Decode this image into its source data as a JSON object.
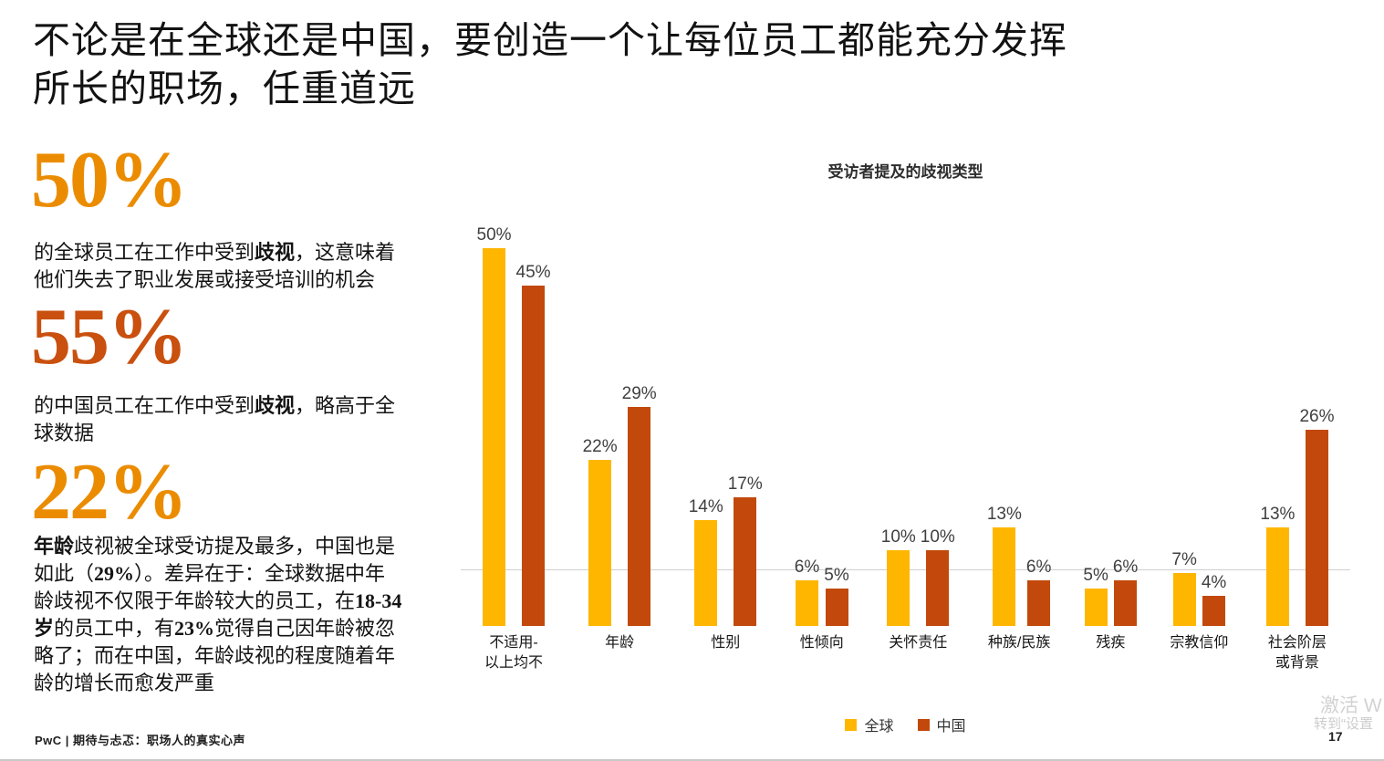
{
  "slide": {
    "title_segments": [
      {
        "t": "不论是在全球还是中国，要创造一个让每位员工都能充分发挥"
      },
      {
        "br": 1
      },
      {
        "t": "所长的职场，任重道远"
      }
    ],
    "footer": "PwC | 期待与忐忑：职场人的真实心声",
    "page_number": "17",
    "watermark_line1": "激活 W",
    "watermark_line2": "转到“设置"
  },
  "stats": [
    {
      "value": "50%",
      "color": "#EB8C00",
      "segments": [
        {
          "t": "的全球员工在工作中受到"
        },
        {
          "t": "歧视",
          "b": 1
        },
        {
          "t": "，这意味着"
        },
        {
          "br": 1
        },
        {
          "t": "他们失去了职业发展或接受培训的机会"
        }
      ]
    },
    {
      "value": "55%",
      "color": "#C9500F",
      "segments": [
        {
          "t": "的中国员工在工作中受到"
        },
        {
          "t": "歧视",
          "b": 1
        },
        {
          "t": "，略高于全"
        },
        {
          "br": 1
        },
        {
          "t": "球数据"
        }
      ]
    },
    {
      "value": "22%",
      "color": "#EB8C00",
      "segments": [
        {
          "t": "年龄",
          "b": 1
        },
        {
          "t": "歧视被全球受访提及最多，中国也是"
        },
        {
          "br": 1
        },
        {
          "t": "如此（"
        },
        {
          "t": "29%",
          "b": 1
        },
        {
          "t": "）。差异在于：全球数据中年"
        },
        {
          "br": 1
        },
        {
          "t": "龄歧视不仅限于年龄较大的员工，在"
        },
        {
          "t": "18-34",
          "b": 1
        },
        {
          "br": 1
        },
        {
          "t": "岁",
          "b": 1
        },
        {
          "t": "的员工中，有"
        },
        {
          "t": "23%",
          "b": 1
        },
        {
          "t": "觉得自己因年龄被忽"
        },
        {
          "br": 1
        },
        {
          "t": "略了；而在中国，年龄歧视的程度随着年"
        },
        {
          "br": 1
        },
        {
          "t": "龄的增长而愈发严重"
        }
      ]
    }
  ],
  "chart_data": {
    "type": "bar",
    "title": "受访者提及的歧视类型",
    "categories": [
      [
        "不适用-",
        "以上均不"
      ],
      [
        "年龄"
      ],
      [
        "性别"
      ],
      [
        "性倾向"
      ],
      [
        "关怀责任"
      ],
      [
        "种族/民族"
      ],
      [
        "残疾"
      ],
      [
        "宗教信仰"
      ],
      [
        "社会阶层",
        "或背景"
      ]
    ],
    "series": [
      {
        "name": "全球",
        "color": "#FFB600",
        "values": [
          50,
          22,
          14,
          6,
          10,
          13,
          5,
          7,
          13
        ]
      },
      {
        "name": "中国",
        "color": "#C2490B",
        "values": [
          45,
          29,
          17,
          5,
          10,
          6,
          6,
          4,
          26
        ]
      }
    ],
    "unit": "%",
    "ylim": [
      0,
      55
    ],
    "value_labels": true,
    "grid": false,
    "legend_position": "bottom"
  }
}
